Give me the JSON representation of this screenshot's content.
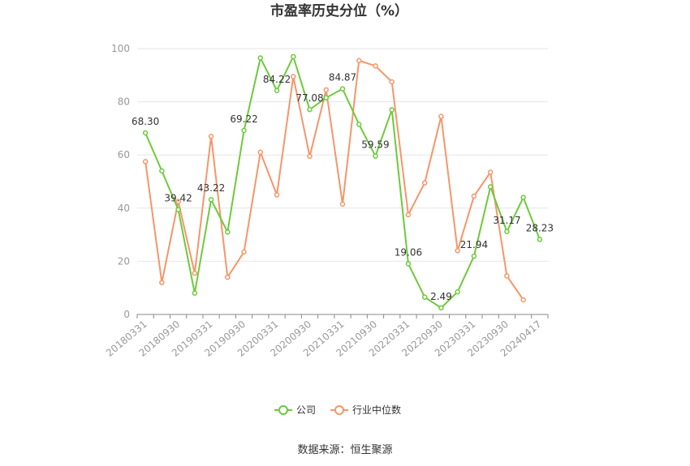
{
  "chart_data": {
    "type": "line",
    "title": "市盈率历史分位（%）",
    "source": "数据来源：恒生聚源",
    "xlabel": "",
    "ylabel": "",
    "ylim": [
      0,
      100
    ],
    "yticks": [
      0,
      20,
      40,
      60,
      80,
      100
    ],
    "grid": true,
    "legend_position": "bottom",
    "x_tick_labels": [
      "20180331",
      "20180930",
      "20190331",
      "20190930",
      "20200331",
      "20200930",
      "20210331",
      "20210930",
      "20220331",
      "20220930",
      "20230331",
      "20230930",
      "20240417"
    ],
    "x": [
      "20180331",
      "20180630",
      "20180930",
      "20181231",
      "20190331",
      "20190630",
      "20190930",
      "20191231",
      "20200331",
      "20200630",
      "20200930",
      "20201231",
      "20210331",
      "20210630",
      "20210930",
      "20211231",
      "20220331",
      "20220630",
      "20220930",
      "20221231",
      "20230331",
      "20230630",
      "20230930",
      "20231231",
      "20240417"
    ],
    "series": [
      {
        "name": "公司",
        "color": "#6dca3c",
        "values": [
          68.3,
          54,
          39.42,
          8,
          43.22,
          31,
          69.22,
          96.5,
          84.22,
          97,
          77.08,
          81.5,
          84.87,
          71.5,
          59.59,
          77,
          19.06,
          6.5,
          2.49,
          8.5,
          21.94,
          48,
          31.17,
          44,
          28.23
        ],
        "labels": [
          "68.30",
          "",
          "39.42",
          "",
          "43.22",
          "",
          "69.22",
          "",
          "84.22",
          "",
          "77.08",
          "",
          "84.87",
          "",
          "59.59",
          "",
          "19.06",
          "",
          "2.49",
          "",
          "21.94",
          "",
          "31.17",
          "",
          "28.23"
        ]
      },
      {
        "name": "行业中位数",
        "color": "#f5966a",
        "values": [
          57.5,
          12,
          42.5,
          15.5,
          67,
          14,
          23.5,
          61,
          45,
          89.5,
          59.5,
          84.5,
          41.5,
          95.5,
          93.5,
          87.5,
          37.5,
          49.5,
          74.5,
          24,
          44.5,
          53.5,
          14.5,
          5.5,
          null
        ]
      }
    ]
  }
}
